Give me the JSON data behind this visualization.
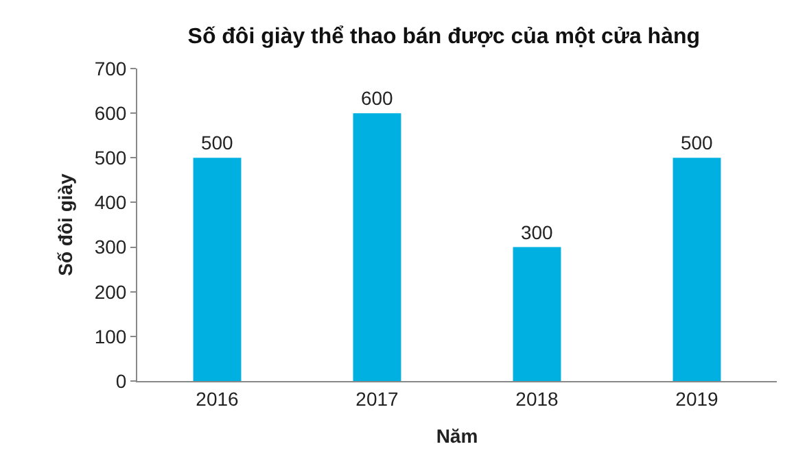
{
  "chart_data": {
    "type": "bar",
    "title": "Số đôi giày thể thao bán được của một cửa hàng",
    "xlabel": "Năm",
    "ylabel": "Số đôi giày",
    "categories": [
      "2016",
      "2017",
      "2018",
      "2019"
    ],
    "values": [
      500,
      600,
      300,
      500
    ],
    "color": "#00b0e0",
    "ylim": [
      0,
      700
    ],
    "yticks": [
      0,
      100,
      200,
      300,
      400,
      500,
      600,
      700
    ],
    "data_labels": true
  }
}
